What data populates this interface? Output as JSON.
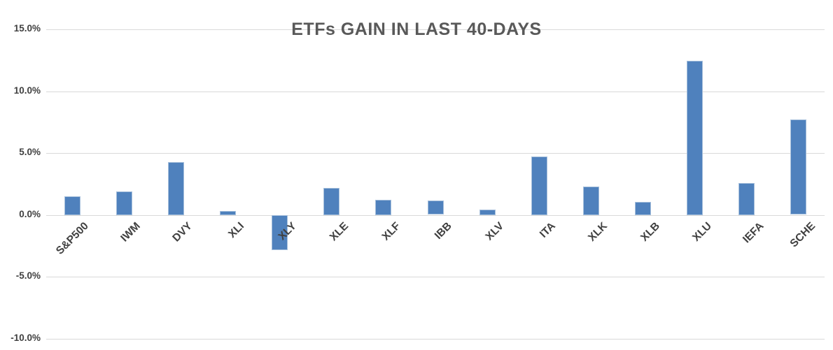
{
  "chart_data": {
    "type": "bar",
    "title": "ETFs GAIN IN LAST 40-DAYS",
    "categories": [
      "S&P500",
      "IWM",
      "DVY",
      "XLI",
      "XLY",
      "XLE",
      "XLF",
      "IBB",
      "XLV",
      "ITA",
      "XLK",
      "XLB",
      "XLU",
      "IEFA",
      "SCHE"
    ],
    "values": [
      1.5,
      1.9,
      4.3,
      0.35,
      -2.8,
      2.2,
      1.25,
      1.15,
      0.45,
      4.75,
      2.3,
      1.05,
      12.45,
      2.6,
      7.7
    ],
    "value_unit": "percent",
    "xlabel": "",
    "ylabel": "",
    "ylim": [
      -10,
      15
    ],
    "y_ticks": [
      15,
      10,
      5,
      0,
      -5,
      -10
    ],
    "y_tick_labels": [
      "15.0%",
      "10.0%",
      "5.0%",
      "0.0%",
      "-5.0%",
      "-10.0%"
    ],
    "grid": true,
    "legend": false,
    "colors": {
      "bar_fill": "#4f81bd",
      "bar_border": "#a7c0dc",
      "gridline": "#d9d9d9",
      "title_text": "#595959",
      "axis_text": "#404040"
    }
  }
}
